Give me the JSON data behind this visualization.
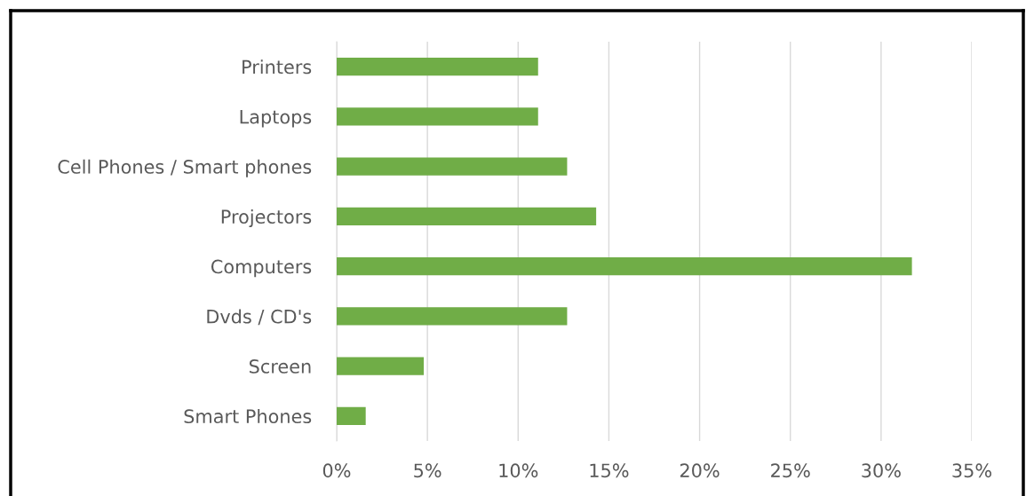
{
  "chart_data": {
    "type": "bar",
    "orientation": "horizontal",
    "categories": [
      "Printers",
      "Laptops",
      "Cell Phones / Smart phones",
      "Projectors",
      "Computers",
      "Dvds / CD's",
      "Screen",
      "Smart Phones"
    ],
    "values": [
      11.1,
      11.1,
      12.7,
      14.3,
      31.7,
      12.7,
      4.8,
      1.6
    ],
    "color": "#70ad47",
    "xlim": [
      0,
      35
    ],
    "xticks": [
      {
        "value": 0,
        "label": "0%"
      },
      {
        "value": 5,
        "label": "5%"
      },
      {
        "value": 10,
        "label": "10%"
      },
      {
        "value": 15,
        "label": "15%"
      },
      {
        "value": 20,
        "label": "20%"
      },
      {
        "value": 25,
        "label": "25%"
      },
      {
        "value": 30,
        "label": "30%"
      },
      {
        "value": 35,
        "label": "35%"
      }
    ],
    "grid": "x"
  }
}
